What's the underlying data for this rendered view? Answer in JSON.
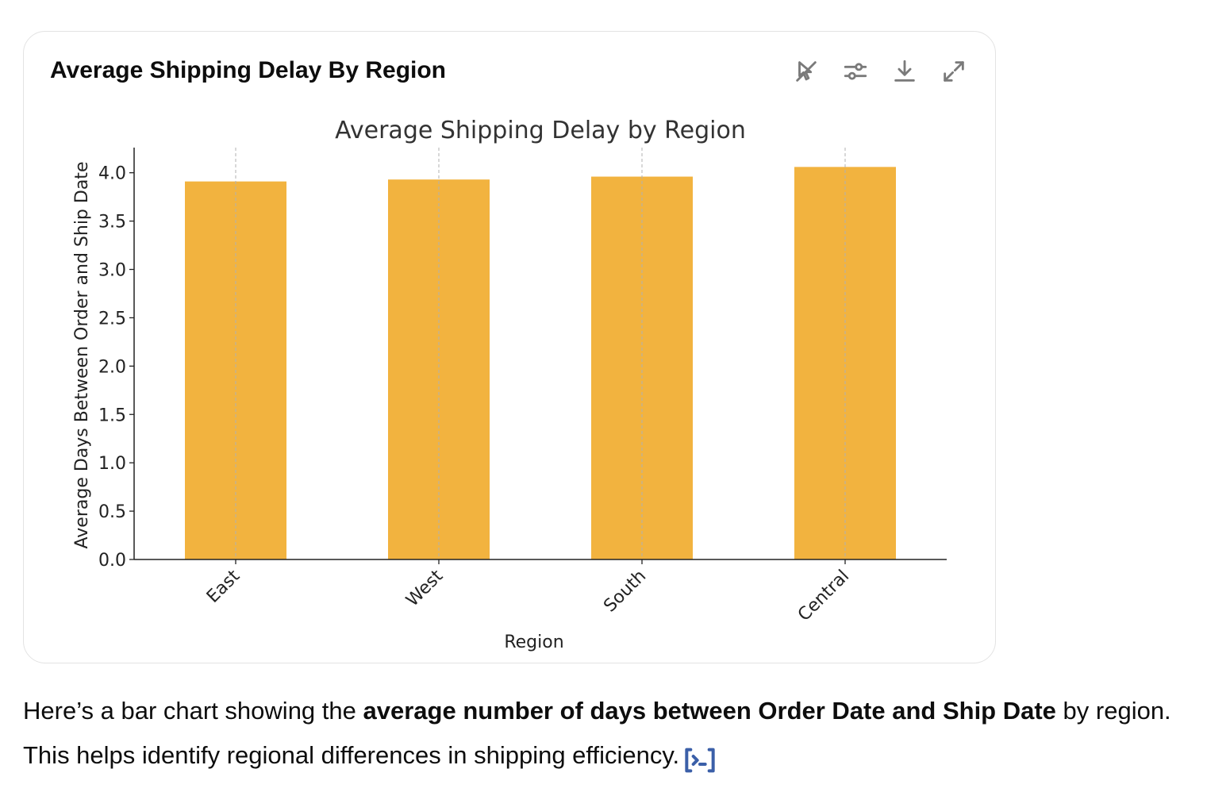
{
  "card": {
    "title": "Average Shipping Delay By Region",
    "toolbar": [
      {
        "icon": "interactive-off-icon"
      },
      {
        "icon": "sliders-icon"
      },
      {
        "icon": "download-icon"
      },
      {
        "icon": "expand-icon"
      }
    ]
  },
  "chart_data": {
    "type": "bar",
    "title": "Average Shipping Delay by Region",
    "xlabel": "Region",
    "ylabel": "Average Days Between Order and Ship Date",
    "categories": [
      "East",
      "West",
      "South",
      "Central"
    ],
    "values": [
      3.91,
      3.93,
      3.96,
      4.06
    ],
    "ylim": [
      0,
      4.26
    ],
    "yticks": [
      "0.0",
      "0.5",
      "1.0",
      "1.5",
      "2.0",
      "2.5",
      "3.0",
      "3.5",
      "4.0"
    ],
    "bar_color": "#f2b33f",
    "grid": "x-dashed",
    "xtick_rotation": 45
  },
  "caption": {
    "part1": "Here’s a bar chart showing the ",
    "bold": "average number of days between Order Date and Ship Date",
    "part2": " by region.",
    "line2": "This helps identify regional differences in shipping efficiency.",
    "cite_icon": "code-citation-icon"
  }
}
